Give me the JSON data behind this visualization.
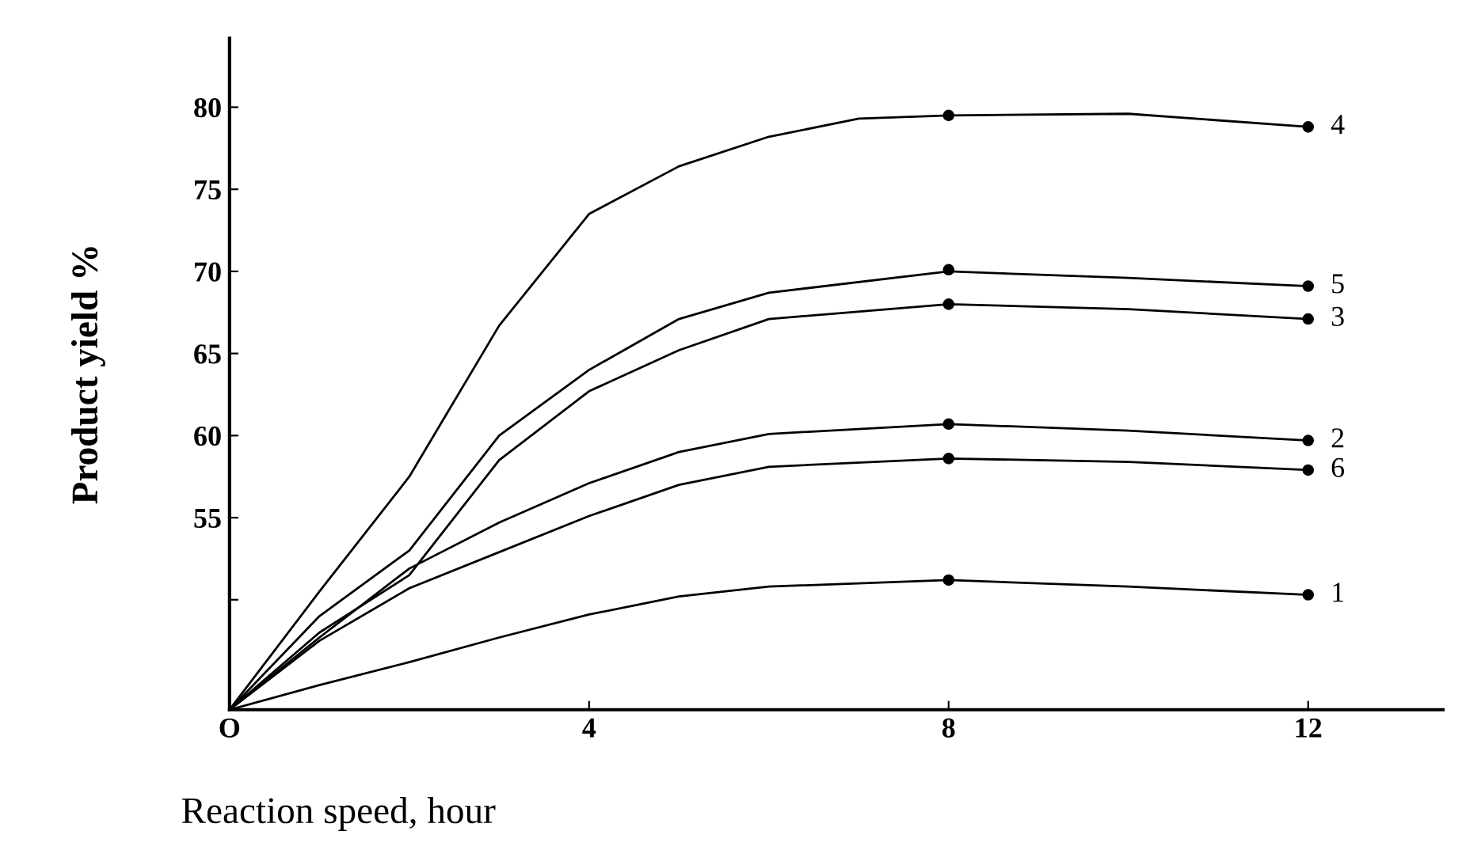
{
  "chart_data": {
    "type": "line",
    "xlabel": "Reaction speed, hour",
    "ylabel": "Product yield %",
    "xlim": [
      0,
      13.5
    ],
    "ylim": [
      43.3,
      84.2
    ],
    "xticks": [
      {
        "value": 0,
        "label": "O"
      },
      4,
      8,
      12
    ],
    "yticks": [
      {
        "value": 50,
        "label": null
      },
      55,
      60,
      65,
      70,
      75,
      80
    ],
    "grid": false,
    "legend": false,
    "marker": "none",
    "line_style": "solid",
    "series": [
      {
        "name": "4",
        "color": "#000000",
        "x": [
          0,
          1,
          2,
          3,
          4,
          5,
          6,
          7,
          8,
          10,
          12
        ],
        "values": [
          43.3,
          50.5,
          57.5,
          66.7,
          73.5,
          76.4,
          78.2,
          79.3,
          79.5,
          79.6,
          78.8
        ]
      },
      {
        "name": "5",
        "color": "#000000",
        "x": [
          0,
          1,
          2,
          3,
          4,
          5,
          6,
          8,
          10,
          12
        ],
        "values": [
          43.3,
          49,
          53,
          60,
          64,
          67.1,
          68.7,
          70.0,
          69.6,
          69.1
        ]
      },
      {
        "name": "3",
        "color": "#000000",
        "x": [
          0,
          1,
          2,
          3,
          4,
          5,
          6,
          8,
          10,
          12
        ],
        "values": [
          43.3,
          48,
          51.5,
          58.5,
          62.7,
          65.2,
          67.1,
          68.0,
          67.7,
          67.1
        ]
      },
      {
        "name": "2",
        "color": "#000000",
        "x": [
          0,
          1,
          2,
          3,
          4,
          5,
          6,
          8,
          10,
          12
        ],
        "values": [
          43.3,
          47.7,
          51.9,
          54.7,
          57.1,
          59.0,
          60.1,
          60.7,
          60.3,
          59.7
        ]
      },
      {
        "name": "6",
        "color": "#000000",
        "x": [
          0,
          1,
          2,
          3,
          4,
          5,
          6,
          8,
          10,
          12
        ],
        "values": [
          43.3,
          47.5,
          50.7,
          52.9,
          55.1,
          57.0,
          58.1,
          58.6,
          58.4,
          57.9
        ]
      },
      {
        "name": "1",
        "color": "#000000",
        "x": [
          0,
          1,
          2,
          3,
          4,
          5,
          6,
          8,
          10,
          12
        ],
        "values": [
          43.3,
          44.8,
          46.2,
          47.7,
          49.1,
          50.2,
          50.8,
          51.2,
          50.8,
          50.3
        ]
      },
      {
        "type": "scatter",
        "marker": "circle",
        "color": "#000000",
        "x": [
          8,
          12
        ],
        "values": [
          79.5,
          78.8
        ]
      },
      {
        "type": "scatter",
        "marker": "circle",
        "color": "#000000",
        "x": [
          8,
          12
        ],
        "values": [
          70.1,
          69.1
        ]
      },
      {
        "type": "scatter",
        "marker": "circle",
        "color": "#000000",
        "x": [
          8,
          12
        ],
        "values": [
          68.0,
          67.1
        ]
      },
      {
        "type": "scatter",
        "marker": "circle",
        "color": "#000000",
        "x": [
          8,
          12
        ],
        "values": [
          60.7,
          59.7
        ]
      },
      {
        "type": "scatter",
        "marker": "circle",
        "color": "#000000",
        "x": [
          8,
          12
        ],
        "values": [
          58.6,
          57.9
        ]
      },
      {
        "type": "scatter",
        "marker": "circle",
        "color": "#000000",
        "x": [
          8,
          12
        ],
        "values": [
          51.2,
          50.3
        ]
      }
    ]
  }
}
